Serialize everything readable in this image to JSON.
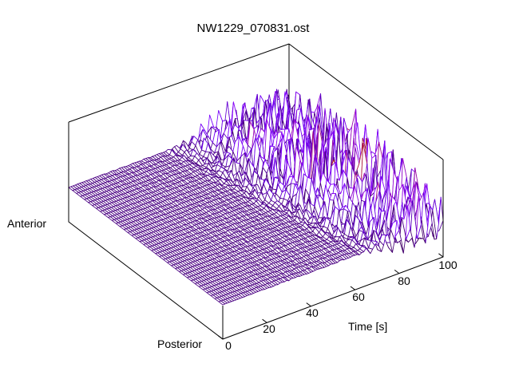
{
  "title": "NW1229_070831.ost",
  "chart_data": {
    "type": "surface",
    "projection": "3d-wireframe-hidden-line",
    "title": "NW1229_070831.ost",
    "x_axis": {
      "label": "Time [s]",
      "range": [
        0,
        100
      ],
      "ticks": [
        0,
        20,
        40,
        60,
        80,
        100
      ]
    },
    "y_axis": {
      "label_start": "Posterior",
      "label_end": "Anterior",
      "ticks": [],
      "grid_rows": 40
    },
    "z_axis": {
      "ticks": [],
      "zero_fraction_of_box": 0.35
    },
    "palette": {
      "name": "gnuplot default pm3d (rgbformulae 7,5,15: dark violet - magenta - red - orange - yellow)",
      "low_color": "#4a0082",
      "mid_colors": [
        "#8d07f0",
        "#af1a30",
        "#d45600"
      ],
      "high_color": "#f4c500",
      "border_color": "#000000",
      "background": "#ffffff"
    },
    "surface": {
      "description": "Surface flat near zero at early times; quasi-periodic oscillations grow with time, earliest and strongest toward mid/anterior rows, reaching peak amplitude near the late-time region.",
      "time_step_s": 1,
      "oscillation_period_s": 4.5,
      "flat_until_s": {
        "posterior": 58,
        "anterior": 40
      },
      "onset_ramp_s": 26,
      "max_peak_fraction_of_box": 0.62,
      "seed": 70831
    }
  }
}
